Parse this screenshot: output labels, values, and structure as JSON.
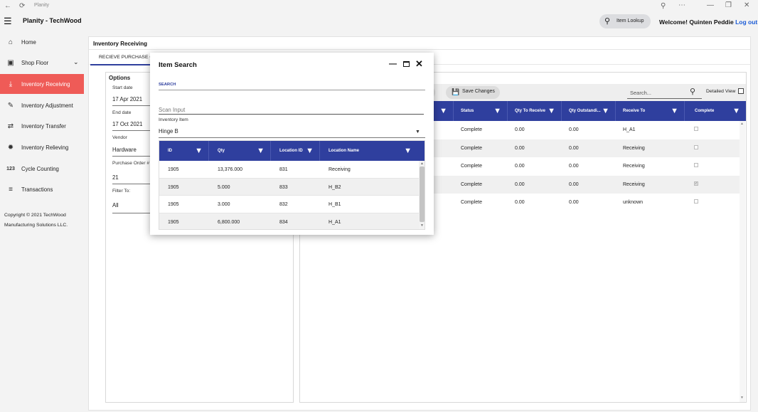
{
  "window": {
    "title": "Planity"
  },
  "header": {
    "app_name": "Planity - TechWood",
    "item_lookup_label": "Item Lookup",
    "welcome_text": "Welcome! Quinten Peddie",
    "logout_label": "Log out"
  },
  "sidebar": {
    "items": [
      {
        "label": "Home",
        "icon": "home-icon"
      },
      {
        "label": "Shop Floor",
        "icon": "shop-floor-icon"
      },
      {
        "label": "Inventory Receiving",
        "icon": "download-icon",
        "active": true
      },
      {
        "label": "Inventory Adjustment",
        "icon": "adjust-icon"
      },
      {
        "label": "Inventory Transfer",
        "icon": "transfer-icon"
      },
      {
        "label": "Inventory Relieving",
        "icon": "relieve-icon"
      },
      {
        "label": "Cycle Counting",
        "icon": "counter-icon",
        "glyph": "123"
      },
      {
        "label": "Transactions",
        "icon": "list-icon"
      }
    ],
    "copyright_line1": "Copyright © 2021 TechWood",
    "copyright_line2": "Manufacturing Solutions LLC."
  },
  "main": {
    "title": "Inventory Receiving",
    "tab_label": "RECIEVE PURCHASE O",
    "options": {
      "title": "Options",
      "start_date_label": "Start date",
      "start_date_value": "17 Apr 2021",
      "end_date_label": "End date",
      "end_date_value": "17 Oct 2021",
      "vendor_label": "Vendor",
      "vendor_value": "Hardware",
      "po_label": "Purchase Order #",
      "po_value": "21",
      "filter_label": "Filter To:",
      "filter_value": "All"
    },
    "grid": {
      "toolbar_partial_label": "s",
      "save_label": "Save Changes",
      "search_placeholder": "Search...",
      "detailed_view_label": "Detailed View",
      "columns": [
        "Status",
        "Qty To Receive",
        "Qty Outstandi...",
        "Receive To",
        "Complete"
      ],
      "rows": [
        {
          "status": "Complete",
          "qty_to_receive": "0.00",
          "qty_outstanding": "0.00",
          "receive_to": "H_A1",
          "complete": false
        },
        {
          "status": "Complete",
          "qty_to_receive": "0.00",
          "qty_outstanding": "0.00",
          "receive_to": "Receiving",
          "complete": false
        },
        {
          "status": "Complete",
          "qty_to_receive": "0.00",
          "qty_outstanding": "0.00",
          "receive_to": "Receiving",
          "complete": false
        },
        {
          "status": "Complete",
          "qty_to_receive": "0.00",
          "qty_outstanding": "0.00",
          "receive_to": "Receiving",
          "complete": true
        },
        {
          "status": "Complete",
          "qty_to_receive": "0.00",
          "qty_outstanding": "0.00",
          "receive_to": "unknown",
          "complete": false
        }
      ]
    }
  },
  "modal": {
    "title": "Item Search",
    "search_label": "SEARCH",
    "scan_placeholder": "Scan Input",
    "inventory_item_label": "Inventory Item",
    "inventory_item_value": "Hinge B",
    "columns": [
      "ID",
      "Qty",
      "Location ID",
      "Location Name"
    ],
    "rows": [
      {
        "id": "1905",
        "qty": "13,376.000",
        "location_id": "831",
        "location_name": "Receiving"
      },
      {
        "id": "1905",
        "qty": "5.000",
        "location_id": "833",
        "location_name": "H_B2"
      },
      {
        "id": "1905",
        "qty": "3.000",
        "location_id": "832",
        "location_name": "H_B1"
      },
      {
        "id": "1905",
        "qty": "6,800.000",
        "location_id": "834",
        "location_name": "H_A1"
      }
    ]
  },
  "colors": {
    "accent": "#2f3f9e",
    "active_nav": "#ef5b57",
    "link": "#1a5bd6"
  }
}
